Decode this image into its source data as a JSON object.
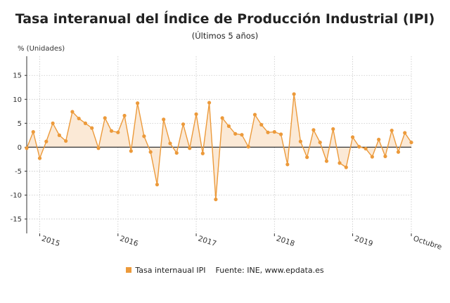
{
  "colors": {
    "series": "#ec9a3b",
    "fill": "#fbe9d6",
    "grid": "#c8c8c8",
    "axis": "#333333",
    "zero": "#333333"
  },
  "chart_data": {
    "type": "line",
    "title": "Tasa interanual del Índice de Producción Industrial (IPI)",
    "subtitle": "(Últimos 5 años)",
    "ylabel": "% (Unidades)",
    "ylim": [
      -18,
      19
    ],
    "yticks": [
      15,
      10,
      5,
      0,
      -5,
      -10,
      -15
    ],
    "x_start": "2014-11",
    "x_end": "2019-10",
    "xticks": [
      "2015",
      "2016",
      "2017",
      "2018",
      "2019",
      "Octubre"
    ],
    "xticks_months": [
      "2015-01",
      "2016-01",
      "2017-01",
      "2018-01",
      "2019-01",
      "2019-10"
    ],
    "grid": true,
    "legend": "bottom",
    "series": [
      {
        "name": "Tasa internaual IPI",
        "x": [
          "2014-11",
          "2014-12",
          "2015-01",
          "2015-02",
          "2015-03",
          "2015-04",
          "2015-05",
          "2015-06",
          "2015-07",
          "2015-08",
          "2015-09",
          "2015-10",
          "2015-11",
          "2015-12",
          "2016-01",
          "2016-02",
          "2016-03",
          "2016-04",
          "2016-05",
          "2016-06",
          "2016-07",
          "2016-08",
          "2016-09",
          "2016-10",
          "2016-11",
          "2016-12",
          "2017-01",
          "2017-02",
          "2017-03",
          "2017-04",
          "2017-05",
          "2017-06",
          "2017-07",
          "2017-08",
          "2017-09",
          "2017-10",
          "2017-11",
          "2017-12",
          "2018-01",
          "2018-02",
          "2018-03",
          "2018-04",
          "2018-05",
          "2018-06",
          "2018-07",
          "2018-08",
          "2018-09",
          "2018-10",
          "2018-11",
          "2018-12",
          "2019-01",
          "2019-02",
          "2019-03",
          "2019-04",
          "2019-05",
          "2019-06",
          "2019-07",
          "2019-08",
          "2019-09",
          "2019-10"
        ],
        "values": [
          -0.2,
          3.2,
          -2.3,
          1.2,
          5.0,
          2.5,
          1.3,
          7.4,
          6.0,
          5.0,
          4.0,
          -0.2,
          6.1,
          3.4,
          3.1,
          6.6,
          -0.8,
          9.2,
          2.3,
          -1.0,
          -7.8,
          5.8,
          0.8,
          -1.2,
          4.8,
          -0.2,
          6.9,
          -1.3,
          9.3,
          -10.9,
          6.1,
          4.4,
          2.8,
          2.6,
          0.1,
          6.8,
          4.7,
          3.1,
          3.2,
          2.7,
          -3.6,
          11.1,
          1.2,
          -2.1,
          3.6,
          1.0,
          -2.9,
          3.8,
          -3.3,
          -4.2,
          2.1,
          0.1,
          -0.3,
          -2.0,
          1.6,
          -1.9,
          3.5,
          -1.0,
          3.0,
          1.0
        ]
      }
    ],
    "source": "Fuente: INE, www.epdata.es"
  }
}
